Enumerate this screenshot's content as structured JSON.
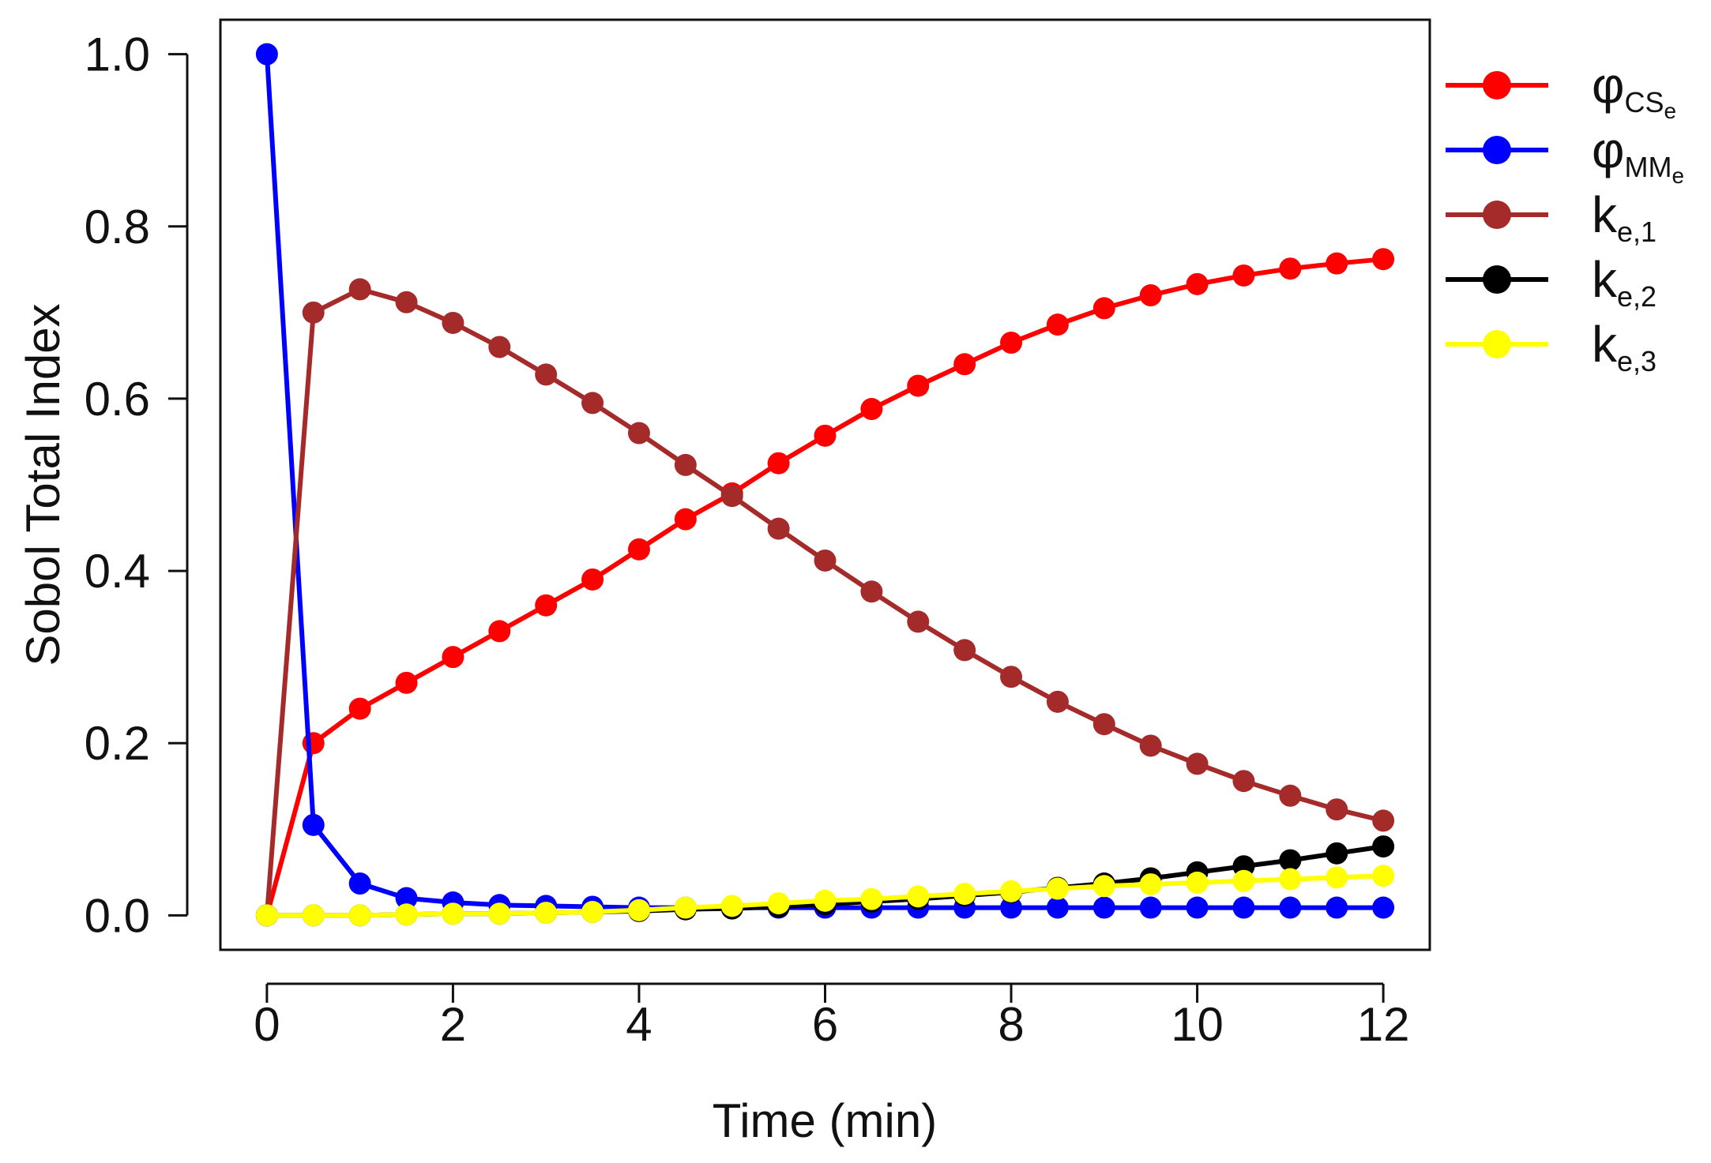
{
  "chart_data": {
    "type": "line",
    "title": "",
    "xlabel": "Time (min)",
    "ylabel": "Sobol Total Index",
    "xlim": [
      -0.5,
      12.5
    ],
    "ylim": [
      -0.04,
      1.04
    ],
    "xticks": [
      0,
      2,
      4,
      6,
      8,
      10,
      12
    ],
    "xtick_labels": [
      "0",
      "2",
      "4",
      "6",
      "8",
      "10",
      "12"
    ],
    "yticks": [
      0.0,
      0.2,
      0.4,
      0.6,
      0.8,
      1.0
    ],
    "ytick_labels": [
      "0.0",
      "0.2",
      "0.4",
      "0.6",
      "0.8",
      "1.0"
    ],
    "grid": false,
    "legend_position": "outside-right",
    "x": [
      0,
      0.5,
      1,
      1.5,
      2,
      2.5,
      3,
      3.5,
      4,
      4.5,
      5,
      5.5,
      6,
      6.5,
      7,
      7.5,
      8,
      8.5,
      9,
      9.5,
      10,
      10.5,
      11,
      11.5,
      12
    ],
    "series": [
      {
        "name": "φCSe",
        "legend_main": "φ",
        "legend_sub": "CS",
        "legend_subsub": "e",
        "color": "#ff0000",
        "values": [
          0.0,
          0.2,
          0.24,
          0.27,
          0.3,
          0.33,
          0.36,
          0.39,
          0.425,
          0.46,
          0.49,
          0.525,
          0.557,
          0.588,
          0.615,
          0.64,
          0.665,
          0.686,
          0.705,
          0.72,
          0.733,
          0.743,
          0.751,
          0.757,
          0.762
        ]
      },
      {
        "name": "φMMe",
        "legend_main": "φ",
        "legend_sub": "MM",
        "legend_subsub": "e",
        "color": "#0000ff",
        "values": [
          1.0,
          0.105,
          0.037,
          0.02,
          0.015,
          0.012,
          0.011,
          0.01,
          0.009,
          0.009,
          0.009,
          0.009,
          0.009,
          0.009,
          0.009,
          0.009,
          0.009,
          0.009,
          0.009,
          0.009,
          0.009,
          0.009,
          0.009,
          0.009,
          0.009
        ]
      },
      {
        "name": "ke,1",
        "legend_main": "k",
        "legend_sub": "e,1",
        "legend_subsub": "",
        "color": "#a52a2a",
        "values": [
          0.0,
          0.7,
          0.727,
          0.712,
          0.688,
          0.66,
          0.628,
          0.595,
          0.56,
          0.523,
          0.487,
          0.449,
          0.412,
          0.376,
          0.341,
          0.308,
          0.277,
          0.248,
          0.222,
          0.197,
          0.176,
          0.156,
          0.139,
          0.123,
          0.11
        ]
      },
      {
        "name": "ke,2",
        "legend_main": "k",
        "legend_sub": "e,2",
        "legend_subsub": "",
        "color": "#000000",
        "values": [
          0.0,
          0.0,
          0.0,
          0.001,
          0.002,
          0.002,
          0.003,
          0.004,
          0.005,
          0.007,
          0.008,
          0.01,
          0.013,
          0.016,
          0.019,
          0.023,
          0.027,
          0.032,
          0.037,
          0.043,
          0.05,
          0.057,
          0.064,
          0.072,
          0.08
        ]
      },
      {
        "name": "ke,3",
        "legend_main": "k",
        "legend_sub": "e,3",
        "legend_subsub": "",
        "color": "#ffff00",
        "values": [
          0.0,
          0.0,
          0.0,
          0.001,
          0.002,
          0.002,
          0.003,
          0.004,
          0.006,
          0.009,
          0.011,
          0.014,
          0.017,
          0.019,
          0.022,
          0.025,
          0.028,
          0.031,
          0.034,
          0.036,
          0.038,
          0.04,
          0.042,
          0.044,
          0.046
        ]
      }
    ]
  }
}
